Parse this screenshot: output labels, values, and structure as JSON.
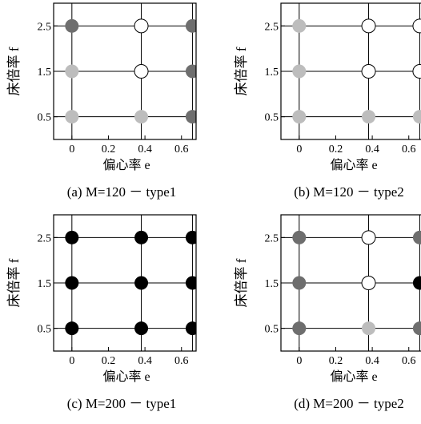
{
  "chart_data": [
    {
      "type": "scatter",
      "title": "(a)  M=120 － type1",
      "xlabel": "偏心率 e",
      "ylabel": "床倍率 f",
      "x_ticks": [
        "0",
        "0.2",
        "0.4",
        "0.6"
      ],
      "y_ticks": [
        "0.5",
        "1.5",
        "2.5"
      ],
      "xlim": [
        -0.1,
        0.68
      ],
      "ylim": [
        0,
        3
      ],
      "points": [
        {
          "x": 0,
          "y": 2.5,
          "fill": "#6e6e6e"
        },
        {
          "x": 0.38,
          "y": 2.5,
          "fill": "#ffffff"
        },
        {
          "x": 0.66,
          "y": 2.5,
          "fill": "#6e6e6e"
        },
        {
          "x": 0,
          "y": 1.5,
          "fill": "#bdbdbd"
        },
        {
          "x": 0.38,
          "y": 1.5,
          "fill": "#ffffff"
        },
        {
          "x": 0.66,
          "y": 1.5,
          "fill": "#6e6e6e"
        },
        {
          "x": 0,
          "y": 0.5,
          "fill": "#bdbdbd"
        },
        {
          "x": 0.38,
          "y": 0.5,
          "fill": "#bdbdbd"
        },
        {
          "x": 0.66,
          "y": 0.5,
          "fill": "#6e6e6e"
        }
      ]
    },
    {
      "type": "scatter",
      "title": "(b)  M=120 － type2",
      "xlabel": "偏心率 e",
      "ylabel": "床倍率 f",
      "x_ticks": [
        "0",
        "0.2",
        "0.4",
        "0.6"
      ],
      "y_ticks": [
        "0.5",
        "1.5",
        "2.5"
      ],
      "xlim": [
        -0.1,
        0.68
      ],
      "ylim": [
        0,
        3
      ],
      "points": [
        {
          "x": 0,
          "y": 2.5,
          "fill": "#bdbdbd"
        },
        {
          "x": 0.38,
          "y": 2.5,
          "fill": "#ffffff"
        },
        {
          "x": 0.66,
          "y": 2.5,
          "fill": "#ffffff"
        },
        {
          "x": 0,
          "y": 1.5,
          "fill": "#bdbdbd"
        },
        {
          "x": 0.38,
          "y": 1.5,
          "fill": "#ffffff"
        },
        {
          "x": 0.66,
          "y": 1.5,
          "fill": "#ffffff"
        },
        {
          "x": 0,
          "y": 0.5,
          "fill": "#bdbdbd"
        },
        {
          "x": 0.38,
          "y": 0.5,
          "fill": "#bdbdbd"
        },
        {
          "x": 0.66,
          "y": 0.5,
          "fill": "#bdbdbd"
        }
      ]
    },
    {
      "type": "scatter",
      "title": "(c)  M=200 － type1",
      "xlabel": "偏心率 e",
      "ylabel": "床倍率 f",
      "x_ticks": [
        "0",
        "0.2",
        "0.4",
        "0.6"
      ],
      "y_ticks": [
        "0.5",
        "1.5",
        "2.5"
      ],
      "xlim": [
        -0.1,
        0.68
      ],
      "ylim": [
        0,
        3
      ],
      "points": [
        {
          "x": 0,
          "y": 2.5,
          "fill": "#000000"
        },
        {
          "x": 0.38,
          "y": 2.5,
          "fill": "#000000"
        },
        {
          "x": 0.66,
          "y": 2.5,
          "fill": "#000000"
        },
        {
          "x": 0,
          "y": 1.5,
          "fill": "#000000"
        },
        {
          "x": 0.38,
          "y": 1.5,
          "fill": "#000000"
        },
        {
          "x": 0.66,
          "y": 1.5,
          "fill": "#000000"
        },
        {
          "x": 0,
          "y": 0.5,
          "fill": "#000000"
        },
        {
          "x": 0.38,
          "y": 0.5,
          "fill": "#000000"
        },
        {
          "x": 0.66,
          "y": 0.5,
          "fill": "#000000"
        }
      ]
    },
    {
      "type": "scatter",
      "title": "(d)  M=200 － type2",
      "xlabel": "偏心率 e",
      "ylabel": "床倍率 f",
      "x_ticks": [
        "0",
        "0.2",
        "0.4",
        "0.6"
      ],
      "y_ticks": [
        "0.5",
        "1.5",
        "2.5"
      ],
      "xlim": [
        -0.1,
        0.68
      ],
      "ylim": [
        0,
        3
      ],
      "points": [
        {
          "x": 0,
          "y": 2.5,
          "fill": "#6e6e6e"
        },
        {
          "x": 0.38,
          "y": 2.5,
          "fill": "#ffffff"
        },
        {
          "x": 0.66,
          "y": 2.5,
          "fill": "#6e6e6e"
        },
        {
          "x": 0,
          "y": 1.5,
          "fill": "#6e6e6e"
        },
        {
          "x": 0.38,
          "y": 1.5,
          "fill": "#ffffff"
        },
        {
          "x": 0.66,
          "y": 1.5,
          "fill": "#000000"
        },
        {
          "x": 0,
          "y": 0.5,
          "fill": "#6e6e6e"
        },
        {
          "x": 0.38,
          "y": 0.5,
          "fill": "#bdbdbd"
        },
        {
          "x": 0.66,
          "y": 0.5,
          "fill": "#6e6e6e"
        }
      ]
    }
  ]
}
